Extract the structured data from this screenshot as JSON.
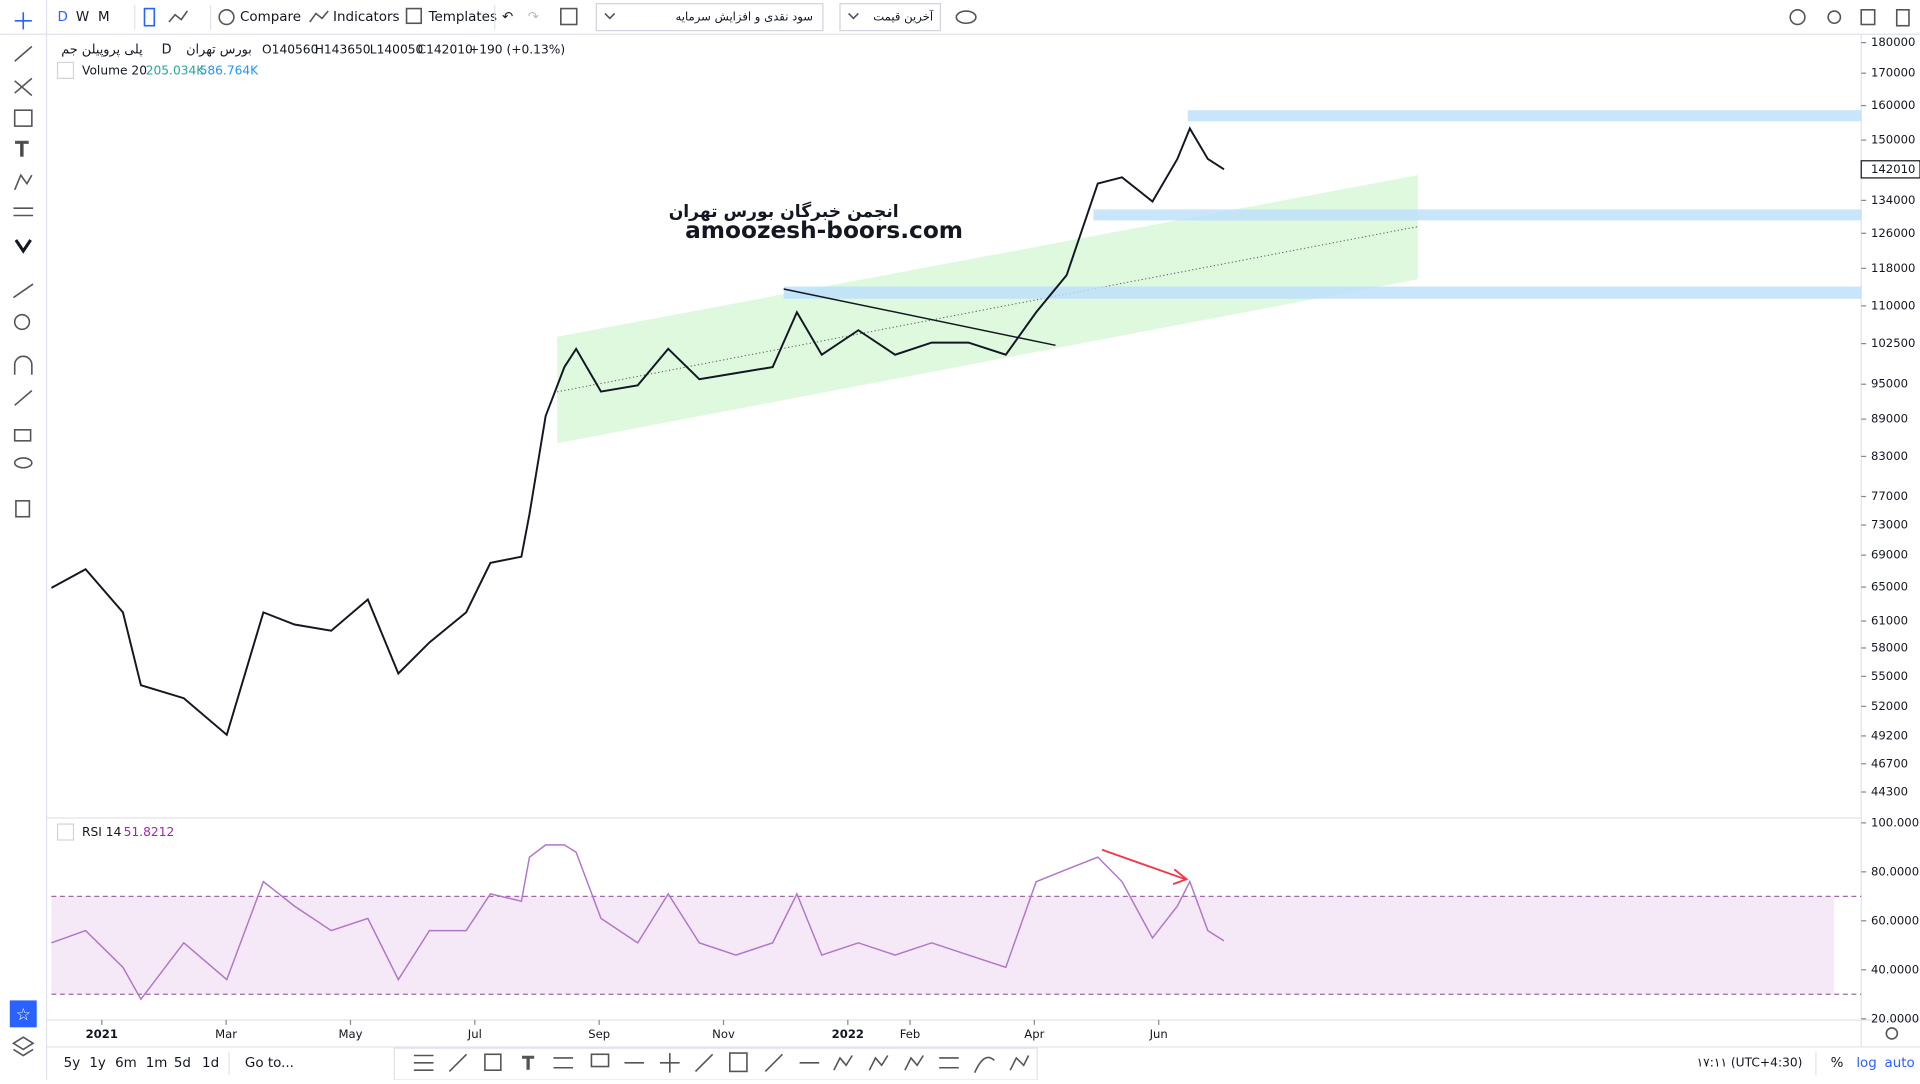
{
  "toolbar": {
    "intervals": [
      "D",
      "W",
      "M"
    ],
    "compare": "Compare",
    "indicators": "Indicators",
    "templates": "Templates",
    "symbol_search": "سود نقدی و افزایش سرمایه",
    "price_type": "آخرین قیمت"
  },
  "legend": {
    "symbol": "پلی پروپیلن جم",
    "interval": "D",
    "exchange": "بورس تهران",
    "open": "O140560",
    "high": "H143650",
    "low": "L140050",
    "close": "C142010",
    "change": "+190 (+0.13%)",
    "volume_title": "Volume 20",
    "volume_value": "205.034K",
    "volume_ma": "586.764K",
    "rsi_title": "RSI 14",
    "rsi_value": "51.8212"
  },
  "watermark": {
    "persian": "انجمن خبرگان بورس تهران",
    "site": "amoozesh-boors.com"
  },
  "chart_data": [
    {
      "type": "line",
      "log_scale": true,
      "color": "#131722",
      "x": [
        -0.81,
        -0.26,
        0.34,
        0.63,
        1.32,
        2.01,
        2.6,
        3.1,
        3.69,
        4.28,
        4.77,
        5.27,
        5.86,
        6.25,
        6.75,
        6.88,
        7.14,
        7.44,
        7.63,
        8.03,
        8.62,
        9.11,
        9.61,
        10.2,
        10.79,
        11.18,
        11.58,
        12.17,
        12.76,
        13.35,
        13.94,
        14.54,
        15.03,
        15.52,
        16.02,
        16.41,
        16.9,
        17.3,
        17.5,
        17.79,
        18.05
      ],
      "values": [
        64900,
        67200,
        62000,
        54100,
        52800,
        49300,
        62000,
        60600,
        59900,
        63500,
        55300,
        58600,
        62000,
        68000,
        68800,
        74500,
        89500,
        98100,
        101500,
        93700,
        94800,
        101500,
        95900,
        97000,
        98100,
        108700,
        100400,
        105100,
        100400,
        102700,
        102700,
        100400,
        108700,
        116500,
        138300,
        139900,
        133700,
        144800,
        153300,
        144800,
        142010
      ],
      "xlim": [
        -0.81,
        28.3
      ],
      "xticks": [
        {
          "value": 0,
          "label": "2021"
        },
        {
          "value": 2,
          "label": "Mar"
        },
        {
          "value": 4,
          "label": "May"
        },
        {
          "value": 6,
          "label": "Jul"
        },
        {
          "value": 8,
          "label": "Sep"
        },
        {
          "value": 10,
          "label": "Nov"
        },
        {
          "value": 12,
          "label": "2022"
        },
        {
          "value": 13,
          "label": "Feb"
        },
        {
          "value": 15,
          "label": "Apr"
        },
        {
          "value": 17,
          "label": "Jun"
        }
      ],
      "ylim": [
        42200,
        182000
      ],
      "yticks": [
        180000,
        170000,
        160000,
        150000,
        134000,
        126000,
        118000,
        110000,
        102500,
        95000,
        89000,
        83000,
        77000,
        73000,
        69000,
        65000,
        61000,
        58000,
        55000,
        52000,
        49200,
        46700,
        44300
      ],
      "last_price": 142010
    },
    {
      "type": "line",
      "color": "#b175c9",
      "values": [
        51,
        56,
        41,
        28,
        51,
        36,
        76,
        66,
        56,
        61,
        36,
        56,
        56,
        71,
        68,
        86,
        91,
        91,
        88,
        61,
        51,
        71,
        51,
        46,
        51,
        71,
        46,
        51,
        46,
        51,
        46,
        41,
        76,
        81,
        86,
        76,
        53,
        66,
        76,
        56,
        51.8212
      ],
      "ylim": [
        19.5,
        101
      ],
      "yticks": [
        {
          "value": 100,
          "label": "100.0000"
        },
        {
          "value": 80,
          "label": "80.0000"
        },
        {
          "value": 60,
          "label": "60.0000"
        },
        {
          "value": 40,
          "label": "40.0000"
        },
        {
          "value": 20,
          "label": "20.0000"
        }
      ],
      "band": [
        30,
        70
      ]
    }
  ],
  "bottom_bar": {
    "ranges": [
      "5y",
      "1y",
      "6m",
      "1m",
      "5d",
      "1d"
    ],
    "goto": "Go to...",
    "time": "۱۷:۱۱ (UTC+4:30)",
    "percent": "%",
    "log": "log",
    "auto": "auto"
  }
}
